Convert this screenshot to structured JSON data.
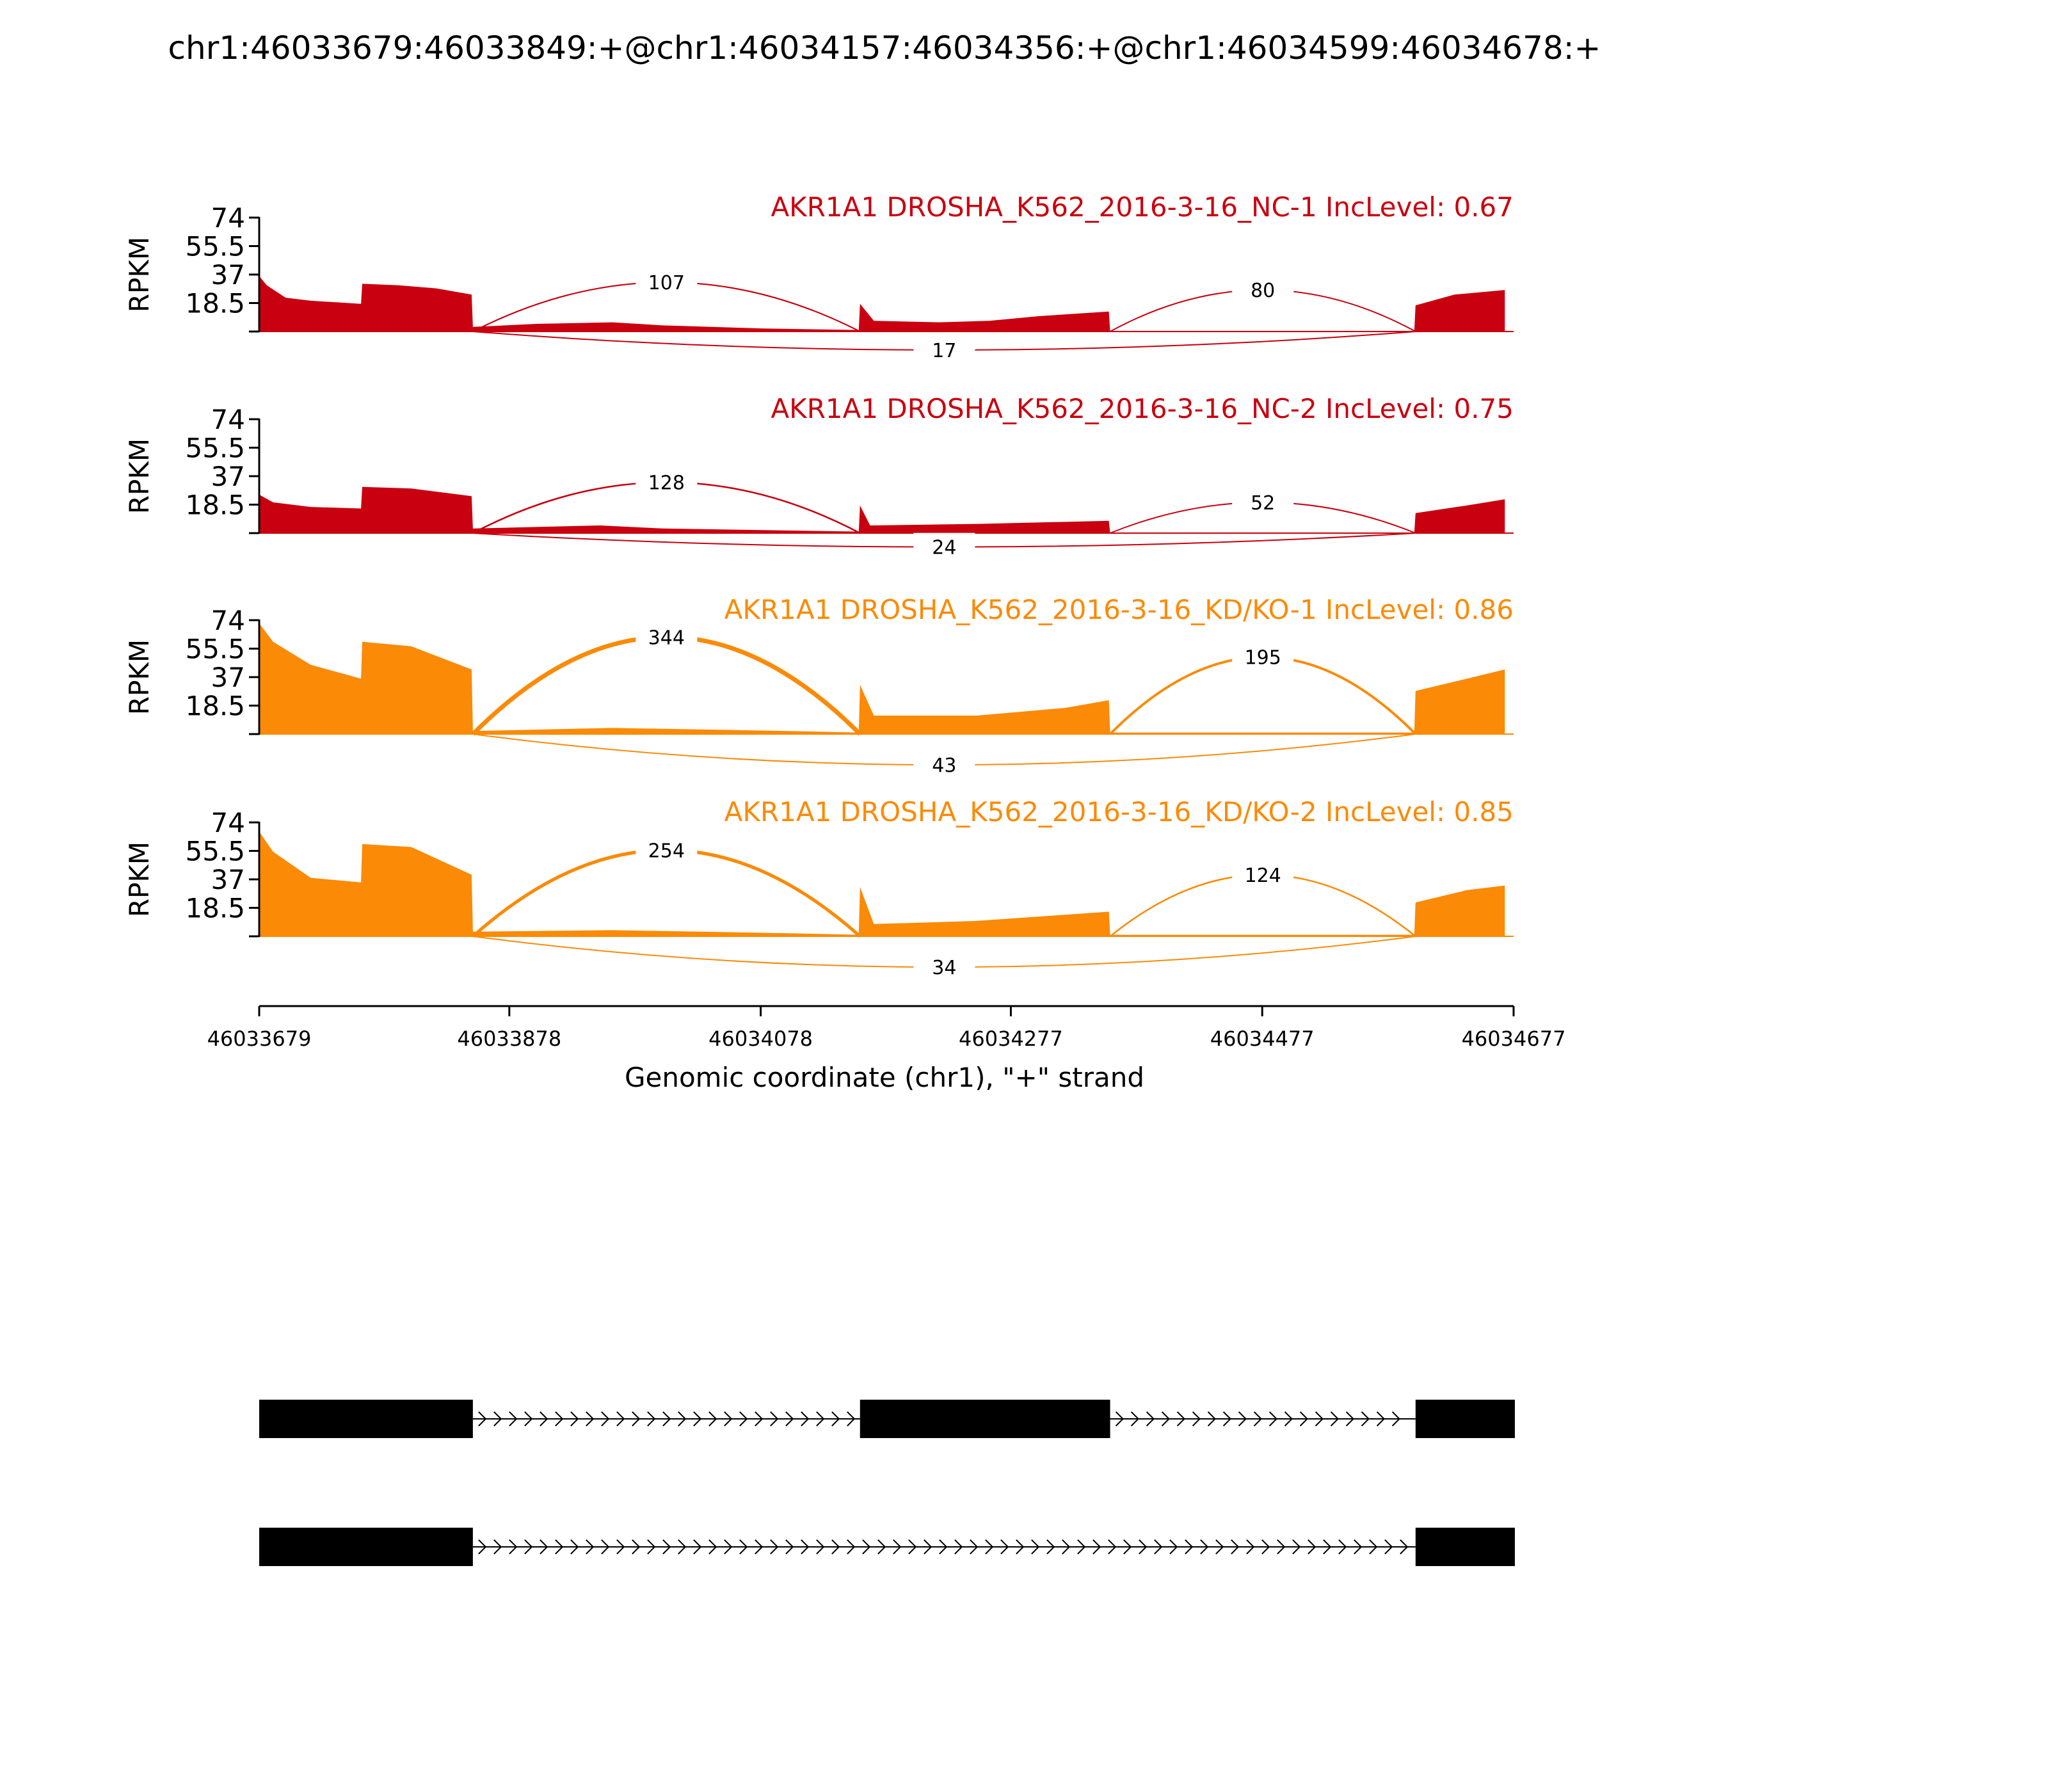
{
  "figure": {
    "title": "chr1:46033679:46033849:+@chr1:46034157:46034356:+@chr1:46034599:46034678:+",
    "xlabel": "Genomic coordinate (chr1), \"+\" strand",
    "ylabel": "RPKM"
  },
  "chart_data": {
    "type": "area",
    "subtype": "sashimi",
    "title": "chr1:46033679:46033849:+@chr1:46034157:46034356:+@chr1:46034599:46034678:+",
    "xlabel": "Genomic coordinate (chr1), \"+\" strand",
    "ylabel": "RPKM",
    "xlim": [
      46033679,
      46034677
    ],
    "xticks": [
      "46033679",
      "46033878",
      "46034078",
      "46034277",
      "46034477",
      "46034677"
    ],
    "ylim": [
      0,
      74
    ],
    "yticks": [
      "18.5",
      "37",
      "55.5",
      "74"
    ],
    "exons": [
      [
        46033679,
        46033849
      ],
      [
        46034157,
        46034356
      ],
      [
        46034599,
        46034678
      ]
    ],
    "series": [
      {
        "name": "AKR1A1 DROSHA_K562_2016-3-16_NC-1 IncLevel: 0.67",
        "color": "#c9000f",
        "coverage": [
          {
            "x": 46033679,
            "y": 36
          },
          {
            "x": 46033685,
            "y": 30
          },
          {
            "x": 46033700,
            "y": 22
          },
          {
            "x": 46033720,
            "y": 20
          },
          {
            "x": 46033740,
            "y": 19
          },
          {
            "x": 46033760,
            "y": 18
          },
          {
            "x": 46033761,
            "y": 31
          },
          {
            "x": 46033790,
            "y": 30
          },
          {
            "x": 46033820,
            "y": 28
          },
          {
            "x": 46033848,
            "y": 24
          },
          {
            "x": 46033849,
            "y": 3
          },
          {
            "x": 46033900,
            "y": 5
          },
          {
            "x": 46033960,
            "y": 6
          },
          {
            "x": 46034000,
            "y": 4
          },
          {
            "x": 46034080,
            "y": 2
          },
          {
            "x": 46034156,
            "y": 1
          },
          {
            "x": 46034157,
            "y": 18
          },
          {
            "x": 46034168,
            "y": 7
          },
          {
            "x": 46034220,
            "y": 6
          },
          {
            "x": 46034260,
            "y": 7
          },
          {
            "x": 46034300,
            "y": 10
          },
          {
            "x": 46034355,
            "y": 13
          },
          {
            "x": 46034356,
            "y": 0
          },
          {
            "x": 46034598,
            "y": 0
          },
          {
            "x": 46034599,
            "y": 17
          },
          {
            "x": 46034630,
            "y": 24
          },
          {
            "x": 46034670,
            "y": 27
          }
        ],
        "junctions": [
          {
            "start": 46033849,
            "end": 46034157,
            "reads": "107",
            "side": "above",
            "height": 32
          },
          {
            "start": 46034356,
            "end": 46034599,
            "reads": "80",
            "side": "above",
            "height": 27
          },
          {
            "start": 46033849,
            "end": 46034599,
            "reads": "17",
            "side": "below",
            "height": -12
          }
        ]
      },
      {
        "name": "AKR1A1 DROSHA_K562_2016-3-16_NC-2 IncLevel: 0.75",
        "color": "#c9000f",
        "coverage": [
          {
            "x": 46033679,
            "y": 25
          },
          {
            "x": 46033690,
            "y": 20
          },
          {
            "x": 46033720,
            "y": 17
          },
          {
            "x": 46033760,
            "y": 16
          },
          {
            "x": 46033761,
            "y": 30
          },
          {
            "x": 46033800,
            "y": 29
          },
          {
            "x": 46033848,
            "y": 24
          },
          {
            "x": 46033849,
            "y": 3
          },
          {
            "x": 46033950,
            "y": 5
          },
          {
            "x": 46034000,
            "y": 3
          },
          {
            "x": 46034156,
            "y": 1
          },
          {
            "x": 46034157,
            "y": 18
          },
          {
            "x": 46034165,
            "y": 5
          },
          {
            "x": 46034250,
            "y": 6
          },
          {
            "x": 46034355,
            "y": 8
          },
          {
            "x": 46034356,
            "y": 0
          },
          {
            "x": 46034598,
            "y": 0
          },
          {
            "x": 46034599,
            "y": 13
          },
          {
            "x": 46034640,
            "y": 18
          },
          {
            "x": 46034670,
            "y": 22
          }
        ],
        "junctions": [
          {
            "start": 46033849,
            "end": 46034157,
            "reads": "128",
            "side": "above",
            "height": 33
          },
          {
            "start": 46034356,
            "end": 46034599,
            "reads": "52",
            "side": "above",
            "height": 20
          },
          {
            "start": 46033849,
            "end": 46034599,
            "reads": "24",
            "side": "below",
            "height": -9
          }
        ]
      },
      {
        "name": "AKR1A1 DROSHA_K562_2016-3-16_KD/KO-1 IncLevel: 0.86",
        "color": "#fb8a06",
        "coverage": [
          {
            "x": 46033679,
            "y": 72
          },
          {
            "x": 46033690,
            "y": 60
          },
          {
            "x": 46033720,
            "y": 45
          },
          {
            "x": 46033760,
            "y": 36
          },
          {
            "x": 46033761,
            "y": 60
          },
          {
            "x": 46033800,
            "y": 57
          },
          {
            "x": 46033848,
            "y": 42
          },
          {
            "x": 46033849,
            "y": 2
          },
          {
            "x": 46033960,
            "y": 4
          },
          {
            "x": 46034100,
            "y": 2
          },
          {
            "x": 46034156,
            "y": 1
          },
          {
            "x": 46034157,
            "y": 32
          },
          {
            "x": 46034168,
            "y": 12
          },
          {
            "x": 46034250,
            "y": 12
          },
          {
            "x": 46034320,
            "y": 17
          },
          {
            "x": 46034355,
            "y": 22
          },
          {
            "x": 46034356,
            "y": 1
          },
          {
            "x": 46034598,
            "y": 1
          },
          {
            "x": 46034599,
            "y": 28
          },
          {
            "x": 46034640,
            "y": 36
          },
          {
            "x": 46034670,
            "y": 42
          }
        ],
        "junctions": [
          {
            "start": 46033849,
            "end": 46034157,
            "reads": "344",
            "side": "above",
            "height": 63
          },
          {
            "start": 46034356,
            "end": 46034599,
            "reads": "195",
            "side": "above",
            "height": 50
          },
          {
            "start": 46033849,
            "end": 46034599,
            "reads": "43",
            "side": "below",
            "height": -20
          }
        ]
      },
      {
        "name": "AKR1A1 DROSHA_K562_2016-3-16_KD/KO-2 IncLevel: 0.85",
        "color": "#fb8a06",
        "coverage": [
          {
            "x": 46033679,
            "y": 68
          },
          {
            "x": 46033690,
            "y": 55
          },
          {
            "x": 46033720,
            "y": 38
          },
          {
            "x": 46033760,
            "y": 35
          },
          {
            "x": 46033761,
            "y": 60
          },
          {
            "x": 46033800,
            "y": 58
          },
          {
            "x": 46033848,
            "y": 40
          },
          {
            "x": 46033849,
            "y": 3
          },
          {
            "x": 46033960,
            "y": 4
          },
          {
            "x": 46034100,
            "y": 2
          },
          {
            "x": 46034156,
            "y": 1
          },
          {
            "x": 46034157,
            "y": 32
          },
          {
            "x": 46034168,
            "y": 8
          },
          {
            "x": 46034250,
            "y": 10
          },
          {
            "x": 46034355,
            "y": 16
          },
          {
            "x": 46034356,
            "y": 1
          },
          {
            "x": 46034598,
            "y": 1
          },
          {
            "x": 46034599,
            "y": 22
          },
          {
            "x": 46034640,
            "y": 30
          },
          {
            "x": 46034670,
            "y": 33
          }
        ],
        "junctions": [
          {
            "start": 46033849,
            "end": 46034157,
            "reads": "254",
            "side": "above",
            "height": 56
          },
          {
            "start": 46034356,
            "end": 46034599,
            "reads": "124",
            "side": "above",
            "height": 40
          },
          {
            "start": 46033849,
            "end": 46034599,
            "reads": "34",
            "side": "below",
            "height": -20
          }
        ]
      }
    ],
    "isoforms": [
      {
        "exons": [
          [
            46033679,
            46033849
          ],
          [
            46034157,
            46034356
          ],
          [
            46034599,
            46034678
          ]
        ]
      },
      {
        "exons": [
          [
            46033679,
            46033849
          ],
          [
            46034599,
            46034678
          ]
        ]
      }
    ]
  }
}
